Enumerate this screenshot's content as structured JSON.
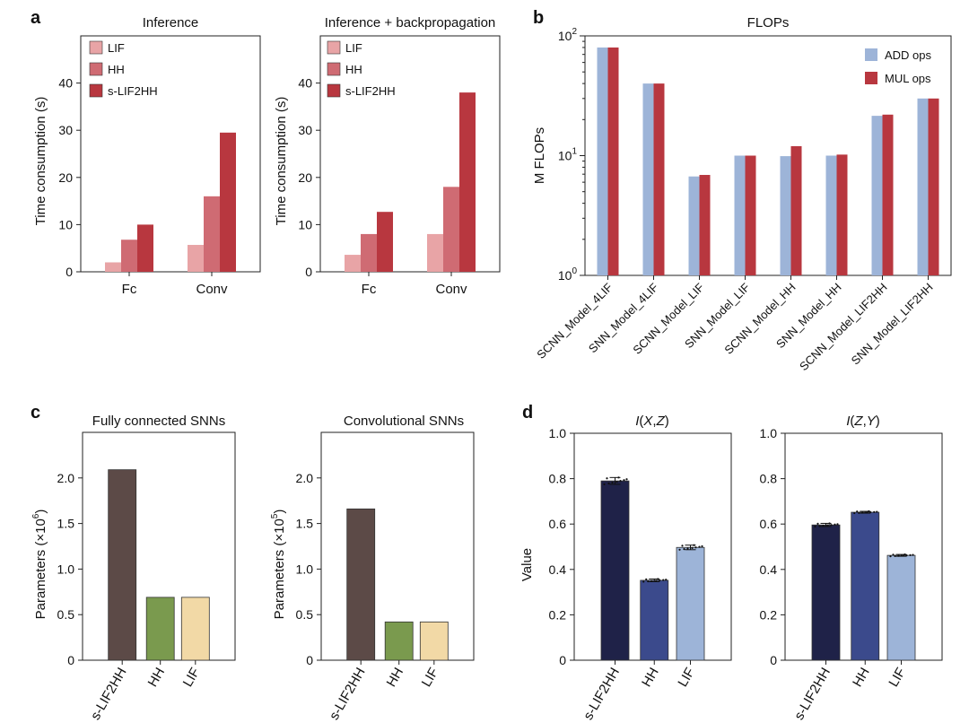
{
  "panel_labels": [
    "a",
    "b",
    "c",
    "d"
  ],
  "chart_data": [
    {
      "id": "a1",
      "type": "bar",
      "panel": "a",
      "title": "Inference",
      "ylabel": "Time consumption (s)",
      "categories": [
        "Fc",
        "Conv"
      ],
      "ylim": [
        0,
        50
      ],
      "yticks": [
        0,
        10,
        20,
        30,
        40
      ],
      "series": [
        {
          "name": "LIF",
          "color": "#e8a4a6",
          "values": [
            2,
            5.7
          ]
        },
        {
          "name": "HH",
          "color": "#cf6b73",
          "values": [
            6.8,
            16
          ]
        },
        {
          "name": "s-LIF2HH",
          "color": "#b8373f",
          "values": [
            10,
            29.5
          ]
        }
      ],
      "legend_position": "top-left"
    },
    {
      "id": "a2",
      "type": "bar",
      "panel": "a",
      "title": "Inference + backpropagation",
      "ylabel": "Time consumption (s)",
      "categories": [
        "Fc",
        "Conv"
      ],
      "ylim": [
        0,
        50
      ],
      "yticks": [
        0,
        10,
        20,
        30,
        40
      ],
      "series": [
        {
          "name": "LIF",
          "color": "#e8a4a6",
          "values": [
            3.6,
            8
          ]
        },
        {
          "name": "HH",
          "color": "#cf6b73",
          "values": [
            8,
            18
          ]
        },
        {
          "name": "s-LIF2HH",
          "color": "#b8373f",
          "values": [
            12.7,
            38
          ]
        }
      ],
      "legend_position": "top-left"
    },
    {
      "id": "b",
      "type": "bar",
      "panel": "b",
      "title": "FLOPs",
      "ylabel": "M FLOPs",
      "yscale": "log",
      "ylim": [
        1,
        100
      ],
      "ytick_values": [
        1,
        10,
        100
      ],
      "ytick_labels": [
        {
          "base": "10",
          "exp": "0"
        },
        {
          "base": "10",
          "exp": "1"
        },
        {
          "base": "10",
          "exp": "2"
        }
      ],
      "categories": [
        "SCNN_Model_4LIF",
        "SNN_Model_4LIF",
        "SCNN_Model_LIF",
        "SNN_Model_LIF",
        "SCNN_Model_HH",
        "SNN_Model_HH",
        "SCNN_Model_LIF2HH",
        "SNN_Model_LIF2HH"
      ],
      "series": [
        {
          "name": "ADD ops",
          "color": "#9db4d8",
          "values": [
            80,
            40,
            6.7,
            10,
            9.9,
            10,
            21.5,
            30
          ]
        },
        {
          "name": "MUL ops",
          "color": "#b8373f",
          "values": [
            80,
            40,
            6.9,
            10,
            12,
            10.2,
            22,
            30
          ]
        }
      ],
      "legend_position": "top-right"
    },
    {
      "id": "c1",
      "type": "bar",
      "panel": "c",
      "title": "Fully connected SNNs",
      "ylabel": "Parameters (×10",
      "ylabel_exp": "6",
      "ylabel_end": ")",
      "categories": [
        "s-LIF2HH",
        "HH",
        "LIF"
      ],
      "colors": [
        "#5c4a47",
        "#7a9a4e",
        "#f2d9a6"
      ],
      "values": [
        2.09,
        0.69,
        0.69
      ],
      "ylim": [
        0,
        2.5
      ],
      "yticks": [
        0,
        0.5,
        1.0,
        1.5,
        2.0
      ],
      "ytick_labels": [
        "0",
        "0.5",
        "1.0",
        "1.5",
        "2.0"
      ]
    },
    {
      "id": "c2",
      "type": "bar",
      "panel": "c",
      "title": "Convolutional SNNs",
      "ylabel": "Parameters (×10",
      "ylabel_exp": "5",
      "ylabel_end": ")",
      "categories": [
        "s-LIF2HH",
        "HH",
        "LIF"
      ],
      "colors": [
        "#5c4a47",
        "#7a9a4e",
        "#f2d9a6"
      ],
      "values": [
        1.66,
        0.42,
        0.42
      ],
      "ylim": [
        0,
        2.5
      ],
      "yticks": [
        0,
        0.5,
        1.0,
        1.5,
        2.0
      ],
      "ytick_labels": [
        "0",
        "0.5",
        "1.0",
        "1.5",
        "2.0"
      ]
    },
    {
      "id": "d1",
      "type": "bar",
      "panel": "d",
      "title_parts": [
        {
          "t": "I",
          "i": true
        },
        {
          "t": "(",
          "i": false
        },
        {
          "t": "X",
          "i": true
        },
        {
          "t": ",",
          "i": false
        },
        {
          "t": "Z",
          "i": true
        },
        {
          "t": ")",
          "i": false
        }
      ],
      "ylabel": "Value",
      "categories": [
        "s-LIF2HH",
        "HH",
        "LIF"
      ],
      "colors": [
        "#1f2248",
        "#3b4a8c",
        "#9db4d8"
      ],
      "values": [
        0.79,
        0.352,
        0.497
      ],
      "errors": [
        0.015,
        0.006,
        0.01
      ],
      "ylim": [
        0,
        1.0
      ],
      "yticks": [
        0,
        0.2,
        0.4,
        0.6,
        0.8,
        1.0
      ],
      "ytick_labels": [
        "0",
        "0.2",
        "0.4",
        "0.6",
        "0.8",
        "1.0"
      ]
    },
    {
      "id": "d2",
      "type": "bar",
      "panel": "d",
      "title_parts": [
        {
          "t": "I",
          "i": true
        },
        {
          "t": "(",
          "i": false
        },
        {
          "t": "Z",
          "i": true
        },
        {
          "t": ",",
          "i": false
        },
        {
          "t": "Y",
          "i": true
        },
        {
          "t": ")",
          "i": false
        }
      ],
      "ylabel": "",
      "categories": [
        "s-LIF2HH",
        "HH",
        "LIF"
      ],
      "colors": [
        "#1f2248",
        "#3b4a8c",
        "#9db4d8"
      ],
      "values": [
        0.596,
        0.652,
        0.462
      ],
      "errors": [
        0.007,
        0.004,
        0.004
      ],
      "ylim": [
        0,
        1.0
      ],
      "yticks": [
        0,
        0.2,
        0.4,
        0.6,
        0.8,
        1.0
      ],
      "ytick_labels": [
        "0",
        "0.2",
        "0.4",
        "0.6",
        "0.8",
        "1.0"
      ]
    }
  ]
}
